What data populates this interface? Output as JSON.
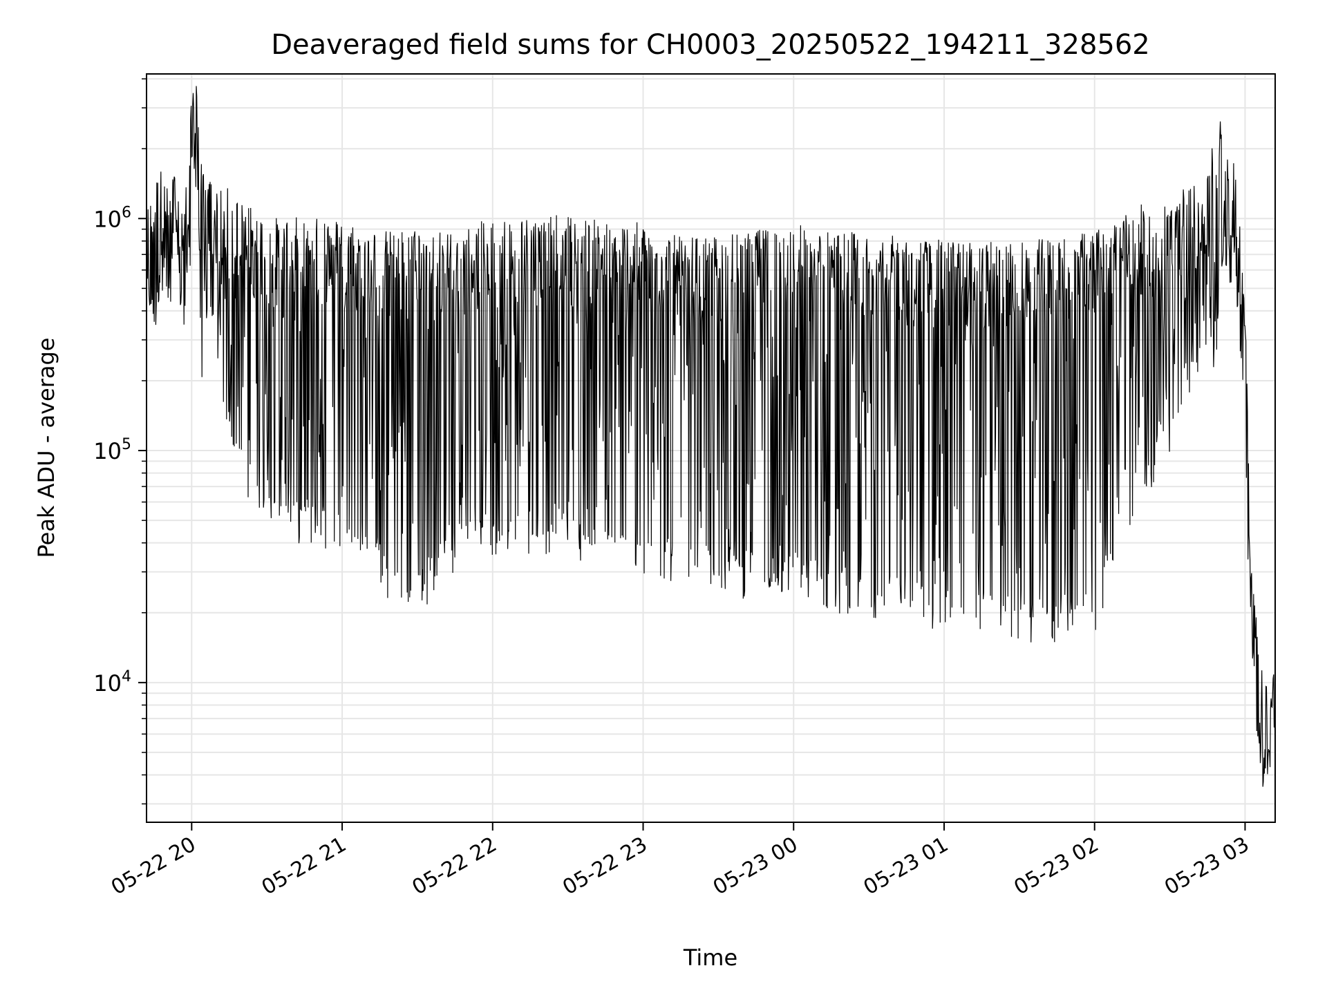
{
  "chart_data": {
    "type": "line",
    "title": "Deaveraged field sums for CH0003_20250522_194211_328562",
    "xlabel": "Time",
    "ylabel": "Peak ADU - average",
    "yscale": "log",
    "ylim": [
      2500,
      4200000
    ],
    "xlim": [
      "2025-05-22 19:42",
      "2025-05-23 03:12"
    ],
    "x_ticks": [
      {
        "label": "05-22 20",
        "time": "2025-05-22 20:00"
      },
      {
        "label": "05-22 21",
        "time": "2025-05-22 21:00"
      },
      {
        "label": "05-22 22",
        "time": "2025-05-22 22:00"
      },
      {
        "label": "05-22 23",
        "time": "2025-05-22 23:00"
      },
      {
        "label": "05-23 00",
        "time": "2025-05-23 00:00"
      },
      {
        "label": "05-23 01",
        "time": "2025-05-23 01:00"
      },
      {
        "label": "05-23 02",
        "time": "2025-05-23 02:00"
      },
      {
        "label": "05-23 03",
        "time": "2025-05-23 03:00"
      }
    ],
    "y_ticks": [
      {
        "base": "10",
        "exp": "4",
        "value": 10000
      },
      {
        "base": "10",
        "exp": "5",
        "value": 100000
      },
      {
        "base": "10",
        "exp": "6",
        "value": 1000000
      }
    ],
    "grid": true,
    "line_color": "#000000",
    "series": [
      {
        "values_note_free": true,
        "x": [
          "2025-05-22 19:42",
          "2025-05-22 19:45",
          "2025-05-22 19:48",
          "2025-05-22 19:51",
          "2025-05-22 19:54",
          "2025-05-22 19:57",
          "2025-05-22 20:00",
          "2025-05-22 20:02",
          "2025-05-22 20:04",
          "2025-05-22 20:06",
          "2025-05-22 20:09",
          "2025-05-22 20:12",
          "2025-05-22 20:15",
          "2025-05-22 20:20",
          "2025-05-22 20:25",
          "2025-05-22 20:30",
          "2025-05-22 20:40",
          "2025-05-22 20:50",
          "2025-05-22 21:00",
          "2025-05-22 21:10",
          "2025-05-22 21:20",
          "2025-05-22 21:30",
          "2025-05-22 21:40",
          "2025-05-22 21:50",
          "2025-05-22 22:00",
          "2025-05-22 22:15",
          "2025-05-22 22:30",
          "2025-05-22 22:45",
          "2025-05-22 23:00",
          "2025-05-22 23:15",
          "2025-05-22 23:30",
          "2025-05-22 23:45",
          "2025-05-23 00:00",
          "2025-05-23 00:15",
          "2025-05-23 00:30",
          "2025-05-23 00:45",
          "2025-05-23 01:00",
          "2025-05-23 01:15",
          "2025-05-23 01:30",
          "2025-05-23 01:45",
          "2025-05-23 02:00",
          "2025-05-23 02:15",
          "2025-05-23 02:30",
          "2025-05-23 02:45",
          "2025-05-23 02:48",
          "2025-05-23 02:52",
          "2025-05-23 02:56",
          "2025-05-23 03:00",
          "2025-05-23 03:02",
          "2025-05-23 03:04",
          "2025-05-23 03:06",
          "2025-05-23 03:08",
          "2025-05-23 03:10",
          "2025-05-23 03:12"
        ],
        "values": [
          600000,
          800000,
          900000,
          700000,
          1000000,
          600000,
          1800000,
          3000000,
          900000,
          800000,
          850000,
          700000,
          750000,
          650000,
          600000,
          550000,
          550000,
          550000,
          550000,
          500000,
          480000,
          500000,
          480000,
          500000,
          550000,
          560000,
          560000,
          530000,
          520000,
          450000,
          460000,
          480000,
          520000,
          480000,
          470000,
          450000,
          440000,
          430000,
          430000,
          450000,
          480000,
          600000,
          700000,
          800000,
          1800000,
          1300000,
          900000,
          300000,
          30000,
          12000,
          7000,
          5500,
          6000,
          6500
        ],
        "low_envelope": [
          450000,
          300000,
          500000,
          400000,
          500000,
          300000,
          800000,
          1500000,
          250000,
          350000,
          300000,
          150000,
          120000,
          80000,
          70000,
          60000,
          50000,
          48000,
          45000,
          40000,
          25000,
          22000,
          35000,
          40000,
          40000,
          45000,
          42000,
          35000,
          35000,
          32000,
          30000,
          28000,
          28000,
          25000,
          24000,
          22000,
          20000,
          19000,
          18000,
          18000,
          20000,
          60000,
          120000,
          350000,
          200000,
          800000,
          500000,
          150000,
          15000,
          6000,
          4000,
          4000,
          4000,
          4500
        ]
      }
    ]
  }
}
